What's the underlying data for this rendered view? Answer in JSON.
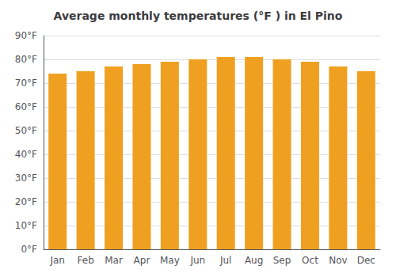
{
  "chart_data": {
    "type": "bar",
    "title": "Average monthly temperatures (°F ) in El Pino",
    "categories": [
      "Jan",
      "Feb",
      "Mar",
      "Apr",
      "May",
      "Jun",
      "Jul",
      "Aug",
      "Sep",
      "Oct",
      "Nov",
      "Dec"
    ],
    "values": [
      74,
      75,
      77,
      78,
      79,
      80,
      81,
      81,
      80,
      79,
      77,
      75
    ],
    "color": "#F0A020",
    "ylim": [
      0,
      90
    ],
    "yticks": [
      {
        "value": 0,
        "label": "0°F"
      },
      {
        "value": 10,
        "label": "10°F"
      },
      {
        "value": 20,
        "label": "20°F"
      },
      {
        "value": 30,
        "label": "30°F"
      },
      {
        "value": 40,
        "label": "40°F"
      },
      {
        "value": 50,
        "label": "50°F"
      },
      {
        "value": 60,
        "label": "60°F"
      },
      {
        "value": 70,
        "label": "70°F"
      },
      {
        "value": 80,
        "label": "80°F"
      },
      {
        "value": 90,
        "label": "90°F"
      }
    ],
    "grid": true
  }
}
